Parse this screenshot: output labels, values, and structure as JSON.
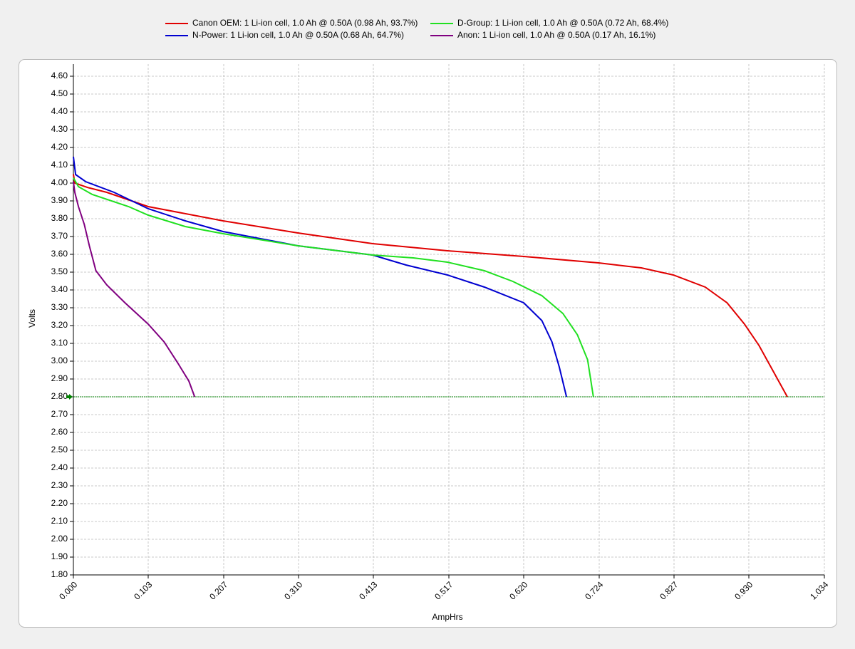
{
  "chart_data": {
    "type": "line",
    "x_label": "AmpHrs",
    "y_label": "Volts",
    "legend": "top",
    "grid": true,
    "reference_line": 2.8,
    "reference_color": "#008000",
    "xlim": [
      0,
      1.034
    ],
    "ylim": [
      1.8,
      4.668
    ],
    "xticks": [
      {
        "value": 0,
        "label": "0.000"
      },
      0.103,
      0.207,
      {
        "value": 0.31,
        "label": "0.310"
      },
      0.413,
      0.517,
      {
        "value": 0.62,
        "label": "0.620"
      },
      0.724,
      0.827,
      {
        "value": 0.93,
        "label": "0.930"
      },
      1.034
    ],
    "yticks": [
      {
        "value": 1.8,
        "label": "1.80"
      },
      {
        "value": 1.9,
        "label": "1.90"
      },
      {
        "value": 2.0,
        "label": "2.00"
      },
      {
        "value": 2.1,
        "label": "2.10"
      },
      {
        "value": 2.2,
        "label": "2.20"
      },
      {
        "value": 2.3,
        "label": "2.30"
      },
      {
        "value": 2.4,
        "label": "2.40"
      },
      {
        "value": 2.5,
        "label": "2.50"
      },
      {
        "value": 2.6,
        "label": "2.60"
      },
      {
        "value": 2.7,
        "label": "2.70"
      },
      {
        "value": 2.8,
        "label": "2.80"
      },
      {
        "value": 2.9,
        "label": "2.90"
      },
      {
        "value": 3.0,
        "label": "3.00"
      },
      {
        "value": 3.1,
        "label": "3.10"
      },
      {
        "value": 3.2,
        "label": "3.20"
      },
      {
        "value": 3.3,
        "label": "3.30"
      },
      {
        "value": 3.4,
        "label": "3.40"
      },
      {
        "value": 3.5,
        "label": "3.50"
      },
      {
        "value": 3.6,
        "label": "3.60"
      },
      {
        "value": 3.7,
        "label": "3.70"
      },
      {
        "value": 3.8,
        "label": "3.80"
      },
      {
        "value": 3.9,
        "label": "3.90"
      },
      {
        "value": 4.0,
        "label": "4.00"
      },
      {
        "value": 4.1,
        "label": "4.10"
      },
      {
        "value": 4.2,
        "label": "4.20"
      },
      {
        "value": 4.3,
        "label": "4.30"
      },
      {
        "value": 4.4,
        "label": "4.40"
      },
      {
        "value": 4.5,
        "label": "4.50"
      },
      {
        "value": 4.6,
        "label": "4.60"
      }
    ],
    "series": [
      {
        "name": "Canon OEM: 1 Li-ion cell, 1.0 Ah @ 0.50A (0.98 Ah, 93.7%)",
        "color": "#e00000",
        "x": [
          0,
          0.002,
          0.02,
          0.046,
          0.103,
          0.206,
          0.309,
          0.412,
          0.515,
          0.62,
          0.723,
          0.782,
          0.826,
          0.87,
          0.9,
          0.924,
          0.944,
          0.963,
          0.983
        ],
        "values": [
          4.05,
          4.0,
          3.975,
          3.948,
          3.868,
          3.788,
          3.72,
          3.66,
          3.62,
          3.588,
          3.552,
          3.524,
          3.484,
          3.416,
          3.328,
          3.208,
          3.088,
          2.948,
          2.8
        ]
      },
      {
        "name": "N-Power: 1 Li-ion cell, 1.0 Ah @ 0.50A (0.68 Ah, 64.7%)",
        "color": "#0000d0",
        "x": [
          0,
          0.003,
          0.017,
          0.056,
          0.103,
          0.154,
          0.206,
          0.309,
          0.412,
          0.458,
          0.515,
          0.566,
          0.62,
          0.645,
          0.659,
          0.669,
          0.679
        ],
        "values": [
          4.148,
          4.048,
          4.008,
          3.948,
          3.856,
          3.788,
          3.728,
          3.648,
          3.596,
          3.54,
          3.484,
          3.416,
          3.328,
          3.228,
          3.108,
          2.968,
          2.8
        ]
      },
      {
        "name": "D-Group: 1 Li-ion cell, 1.0 Ah @ 0.50A (0.72 Ah, 68.4%)",
        "color": "#20e020",
        "x": [
          0,
          0.007,
          0.026,
          0.076,
          0.103,
          0.154,
          0.206,
          0.309,
          0.412,
          0.468,
          0.515,
          0.566,
          0.605,
          0.645,
          0.674,
          0.694,
          0.708,
          0.716
        ],
        "values": [
          4.03,
          3.98,
          3.936,
          3.868,
          3.82,
          3.756,
          3.716,
          3.648,
          3.596,
          3.58,
          3.556,
          3.508,
          3.448,
          3.368,
          3.268,
          3.148,
          3.008,
          2.8
        ]
      },
      {
        "name": "Anon: 1 Li-ion cell, 1.0 Ah @ 0.50A (0.17 Ah, 16.1%)",
        "color": "#800080",
        "x": [
          0,
          0.002,
          0.007,
          0.015,
          0.022,
          0.031,
          0.046,
          0.071,
          0.103,
          0.125,
          0.144,
          0.159,
          0.167
        ],
        "values": [
          4.008,
          3.948,
          3.868,
          3.768,
          3.648,
          3.508,
          3.428,
          3.328,
          3.208,
          3.108,
          2.988,
          2.888,
          2.8
        ]
      }
    ]
  }
}
